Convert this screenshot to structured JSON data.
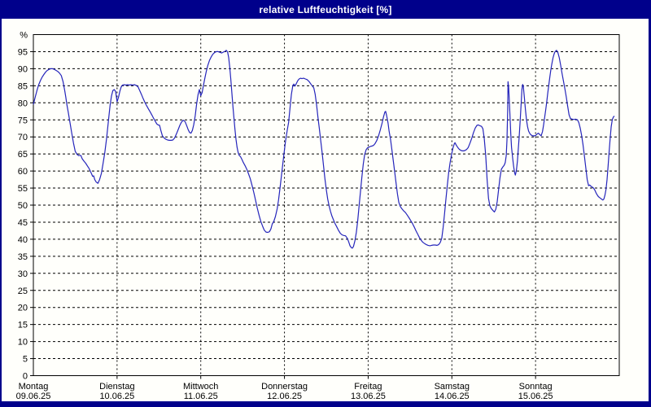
{
  "window": {
    "title": "relative Luftfeuchtigkeit [%]"
  },
  "colors": {
    "chrome": "#00008b",
    "title_text": "#ffffff",
    "background": "#fffffb",
    "line": "#2525bb",
    "grid": "#000000",
    "frame": "#000000",
    "text": "#000000"
  },
  "chart_data": {
    "type": "line",
    "title": "relative Luftfeuchtigkeit [%]",
    "y_unit": "%",
    "ylabel": "relative Luftfeuchtigkeit",
    "ylim": [
      0,
      100
    ],
    "y_ticks": [
      0,
      5,
      10,
      15,
      20,
      25,
      30,
      35,
      40,
      45,
      50,
      55,
      60,
      65,
      70,
      75,
      80,
      85,
      90,
      95
    ],
    "grid": "dashed",
    "legend": "none",
    "x_hours_total": 168,
    "x_days": [
      {
        "name": "Montag",
        "date": "09.06.25"
      },
      {
        "name": "Dienstag",
        "date": "10.06.25"
      },
      {
        "name": "Mittwoch",
        "date": "11.06.25"
      },
      {
        "name": "Donnerstag",
        "date": "12.06.25"
      },
      {
        "name": "Freitag",
        "date": "13.06.25"
      },
      {
        "name": "Samstag",
        "date": "14.06.25"
      },
      {
        "name": "Sonntag",
        "date": "15.06.25"
      }
    ],
    "points": [
      [
        0,
        79.5
      ],
      [
        0.5,
        81.5
      ],
      [
        1,
        83.5
      ],
      [
        1.5,
        85.2
      ],
      [
        2,
        86.5
      ],
      [
        2.5,
        87.5
      ],
      [
        3,
        88.3
      ],
      [
        3.5,
        89
      ],
      [
        4,
        89.5
      ],
      [
        4.5,
        89.8
      ],
      [
        5,
        90
      ],
      [
        5.5,
        90
      ],
      [
        6,
        89.8
      ],
      [
        6.5,
        89.5
      ],
      [
        7,
        89.2
      ],
      [
        7.5,
        88.7
      ],
      [
        8,
        88
      ],
      [
        8.5,
        86.3
      ],
      [
        9,
        83.5
      ],
      [
        9.3,
        81.6
      ],
      [
        9.6,
        79.6
      ],
      [
        10,
        77.2
      ],
      [
        10.5,
        74.2
      ],
      [
        11,
        71.2
      ],
      [
        11.5,
        68.2
      ],
      [
        12,
        65.8
      ],
      [
        12.5,
        64.9
      ],
      [
        13,
        64.5
      ],
      [
        13.6,
        64.6
      ],
      [
        14,
        63.6
      ],
      [
        14.5,
        62.9
      ],
      [
        15,
        62.3
      ],
      [
        15.5,
        61.5
      ],
      [
        16,
        60.7
      ],
      [
        16.5,
        59.6
      ],
      [
        17,
        58.4
      ],
      [
        17.3,
        58.6
      ],
      [
        17.6,
        57.5
      ],
      [
        18,
        56.8
      ],
      [
        18.5,
        56.4
      ],
      [
        19,
        57.5
      ],
      [
        19.5,
        59.3
      ],
      [
        20,
        62.3
      ],
      [
        20.5,
        65.6
      ],
      [
        21,
        69.6
      ],
      [
        21.5,
        74.4
      ],
      [
        22,
        79.3
      ],
      [
        22.4,
        82
      ],
      [
        22.8,
        83.6
      ],
      [
        23.2,
        83.9
      ],
      [
        23.6,
        83.3
      ],
      [
        24,
        80.3
      ],
      [
        24.4,
        81.6
      ],
      [
        24.8,
        83.4
      ],
      [
        25.2,
        84.7
      ],
      [
        25.6,
        85.2
      ],
      [
        26,
        85.3
      ],
      [
        26.5,
        85.2
      ],
      [
        27,
        85.3
      ],
      [
        27.5,
        85.2
      ],
      [
        28,
        85.3
      ],
      [
        28.5,
        85.2
      ],
      [
        29,
        85.3
      ],
      [
        29.5,
        85.1
      ],
      [
        30,
        84.7
      ],
      [
        30.5,
        83.6
      ],
      [
        31,
        82.4
      ],
      [
        31.5,
        81.2
      ],
      [
        32,
        80.1
      ],
      [
        32.5,
        79.1
      ],
      [
        33,
        78.2
      ],
      [
        33.5,
        77.3
      ],
      [
        34,
        76.4
      ],
      [
        34.5,
        75.4
      ],
      [
        35,
        74.5
      ],
      [
        35.4,
        73.8
      ],
      [
        35.8,
        73.5
      ],
      [
        36.2,
        73.4
      ],
      [
        36.6,
        71.7
      ],
      [
        37,
        70.3
      ],
      [
        37.5,
        69.7
      ],
      [
        38,
        69.3
      ],
      [
        38.5,
        69.1
      ],
      [
        39,
        69
      ],
      [
        39.5,
        69
      ],
      [
        40,
        69.1
      ],
      [
        40.5,
        69.7
      ],
      [
        41,
        70.8
      ],
      [
        41.5,
        72.1
      ],
      [
        42,
        73.4
      ],
      [
        42.5,
        74.4
      ],
      [
        43,
        74.9
      ],
      [
        43.5,
        74.5
      ],
      [
        44,
        73.2
      ],
      [
        44.4,
        72.1
      ],
      [
        44.8,
        71.3
      ],
      [
        45.2,
        71.1
      ],
      [
        45.6,
        71.9
      ],
      [
        46,
        73.6
      ],
      [
        46.4,
        76.2
      ],
      [
        46.8,
        79.6
      ],
      [
        47.2,
        82.3
      ],
      [
        47.6,
        83.9
      ],
      [
        48,
        82.1
      ],
      [
        48.4,
        83
      ],
      [
        48.8,
        85.2
      ],
      [
        49.2,
        87.4
      ],
      [
        49.6,
        89.3
      ],
      [
        50,
        90.9
      ],
      [
        50.5,
        92.4
      ],
      [
        51,
        93.5
      ],
      [
        51.5,
        94.3
      ],
      [
        52,
        94.8
      ],
      [
        52.5,
        95
      ],
      [
        53,
        95
      ],
      [
        53.5,
        94.8
      ],
      [
        54,
        94.6
      ],
      [
        54.5,
        94.9
      ],
      [
        55,
        95.1
      ],
      [
        55.3,
        95.4
      ],
      [
        55.7,
        94.9
      ],
      [
        56,
        93.3
      ],
      [
        56.3,
        90.5
      ],
      [
        56.6,
        87
      ],
      [
        56.9,
        83
      ],
      [
        57.2,
        79.3
      ],
      [
        57.5,
        75.8
      ],
      [
        57.8,
        72.3
      ],
      [
        58.1,
        69.3
      ],
      [
        58.4,
        67
      ],
      [
        58.7,
        65.5
      ],
      [
        59,
        64.6
      ],
      [
        59.4,
        64.2
      ],
      [
        59.8,
        63.4
      ],
      [
        60.2,
        62.5
      ],
      [
        60.7,
        61.6
      ],
      [
        61.2,
        60.5
      ],
      [
        61.7,
        59.2
      ],
      [
        62.2,
        57.7
      ],
      [
        62.7,
        55.8
      ],
      [
        63.2,
        53.7
      ],
      [
        63.7,
        51.5
      ],
      [
        64.2,
        49.2
      ],
      [
        64.7,
        47.1
      ],
      [
        65.2,
        45.3
      ],
      [
        65.7,
        43.9
      ],
      [
        66.2,
        42.7
      ],
      [
        66.7,
        42.1
      ],
      [
        67.2,
        42
      ],
      [
        67.7,
        42.2
      ],
      [
        68.1,
        43
      ],
      [
        68.5,
        44.5
      ],
      [
        68.9,
        45.1
      ],
      [
        69.4,
        46.6
      ],
      [
        69.9,
        48.9
      ],
      [
        70.3,
        51.5
      ],
      [
        70.8,
        55.6
      ],
      [
        71.3,
        60.2
      ],
      [
        71.8,
        64.5
      ],
      [
        72.3,
        68.8
      ],
      [
        72.8,
        72
      ],
      [
        73.2,
        74.3
      ],
      [
        73.6,
        78.5
      ],
      [
        74,
        82.5
      ],
      [
        74.4,
        85.1
      ],
      [
        74.7,
        85.5
      ],
      [
        75,
        84.9
      ],
      [
        75.4,
        85.6
      ],
      [
        75.8,
        86.5
      ],
      [
        76.2,
        87
      ],
      [
        76.6,
        87.2
      ],
      [
        77,
        87.1
      ],
      [
        77.5,
        87.2
      ],
      [
        78,
        87
      ],
      [
        78.5,
        86.8
      ],
      [
        79,
        86.3
      ],
      [
        79.5,
        85.6
      ],
      [
        80,
        84.9
      ],
      [
        80.4,
        84.4
      ],
      [
        80.8,
        82.5
      ],
      [
        81.2,
        79.5
      ],
      [
        81.6,
        75.8
      ],
      [
        82,
        72.5
      ],
      [
        82.4,
        69
      ],
      [
        82.8,
        65.3
      ],
      [
        83.2,
        61.5
      ],
      [
        83.6,
        57.7
      ],
      [
        84,
        54.5
      ],
      [
        84.4,
        51.8
      ],
      [
        84.8,
        49.8
      ],
      [
        85.2,
        48.2
      ],
      [
        85.6,
        46.8
      ],
      [
        86,
        45.8
      ],
      [
        86.5,
        44.6
      ],
      [
        87,
        43.6
      ],
      [
        87.5,
        42.6
      ],
      [
        88,
        41.8
      ],
      [
        88.5,
        41.3
      ],
      [
        89,
        41.1
      ],
      [
        89.5,
        41
      ],
      [
        90,
        40.3
      ],
      [
        90.4,
        39.3
      ],
      [
        90.8,
        38.1
      ],
      [
        91.2,
        37.5
      ],
      [
        91.5,
        37.4
      ],
      [
        91.8,
        37.9
      ],
      [
        92.2,
        39.5
      ],
      [
        92.6,
        42
      ],
      [
        93,
        45.5
      ],
      [
        93.4,
        49.8
      ],
      [
        93.8,
        54
      ],
      [
        94.2,
        58.2
      ],
      [
        94.6,
        62
      ],
      [
        95,
        64.8
      ],
      [
        95.4,
        66.2
      ],
      [
        95.8,
        66.8
      ],
      [
        96.2,
        67
      ],
      [
        96.6,
        67.2
      ],
      [
        97,
        67.3
      ],
      [
        97.5,
        67.5
      ],
      [
        98,
        68.1
      ],
      [
        98.5,
        69
      ],
      [
        99,
        70.4
      ],
      [
        99.5,
        72.1
      ],
      [
        100,
        74.1
      ],
      [
        100.4,
        75.9
      ],
      [
        100.8,
        77.3
      ],
      [
        101,
        77.5
      ],
      [
        101.3,
        76.3
      ],
      [
        101.7,
        74
      ],
      [
        102,
        71.8
      ],
      [
        102.4,
        69.3
      ],
      [
        102.8,
        66.2
      ],
      [
        103.2,
        63
      ],
      [
        103.6,
        59.8
      ],
      [
        104,
        56.5
      ],
      [
        104.4,
        53.3
      ],
      [
        104.8,
        50.8
      ],
      [
        105.2,
        49.6
      ],
      [
        105.7,
        48.9
      ],
      [
        106.2,
        48.3
      ],
      [
        106.7,
        47.8
      ],
      [
        107.2,
        47.1
      ],
      [
        107.7,
        46.3
      ],
      [
        108.2,
        45.5
      ],
      [
        108.7,
        44.6
      ],
      [
        109.2,
        43.6
      ],
      [
        109.7,
        42.5
      ],
      [
        110.2,
        41.5
      ],
      [
        110.7,
        40.5
      ],
      [
        111.2,
        39.7
      ],
      [
        111.7,
        39.1
      ],
      [
        112.2,
        38.7
      ],
      [
        112.7,
        38.4
      ],
      [
        113.2,
        38.2
      ],
      [
        113.7,
        38.1
      ],
      [
        114.2,
        38.2
      ],
      [
        114.7,
        38.3
      ],
      [
        115.2,
        38.3
      ],
      [
        115.7,
        38.2
      ],
      [
        116.2,
        38.4
      ],
      [
        116.7,
        39.1
      ],
      [
        117.1,
        40.3
      ],
      [
        117.5,
        43.5
      ],
      [
        117.9,
        47.5
      ],
      [
        118.3,
        51.8
      ],
      [
        118.7,
        55.8
      ],
      [
        119.1,
        59.6
      ],
      [
        119.5,
        62.4
      ],
      [
        119.9,
        64.8
      ],
      [
        120.3,
        66.7
      ],
      [
        120.7,
        68
      ],
      [
        120.9,
        68.3
      ],
      [
        121.3,
        67.5
      ],
      [
        121.7,
        66.9
      ],
      [
        122.2,
        66.3
      ],
      [
        122.7,
        66
      ],
      [
        123.2,
        65.9
      ],
      [
        123.7,
        66
      ],
      [
        124.2,
        66.3
      ],
      [
        124.7,
        66.9
      ],
      [
        125.2,
        68.2
      ],
      [
        125.7,
        69.6
      ],
      [
        126.2,
        71.3
      ],
      [
        126.7,
        72.6
      ],
      [
        127.2,
        73.4
      ],
      [
        127.6,
        73.5
      ],
      [
        128,
        73.3
      ],
      [
        128.5,
        73.1
      ],
      [
        128.9,
        72.4
      ],
      [
        129.3,
        69.5
      ],
      [
        129.7,
        64.5
      ],
      [
        130.1,
        57.5
      ],
      [
        130.5,
        52
      ],
      [
        130.9,
        49.8
      ],
      [
        131.3,
        49
      ],
      [
        131.8,
        48.4
      ],
      [
        132.2,
        48
      ],
      [
        132.6,
        48.8
      ],
      [
        133,
        51
      ],
      [
        133.4,
        54.5
      ],
      [
        133.8,
        58
      ],
      [
        134.2,
        60.5
      ],
      [
        134.6,
        61.2
      ],
      [
        135,
        61.7
      ],
      [
        135.3,
        62.5
      ],
      [
        135.6,
        64.5
      ],
      [
        135.8,
        69
      ],
      [
        136,
        78
      ],
      [
        136.1,
        86.2
      ],
      [
        136.3,
        84.5
      ],
      [
        136.5,
        80
      ],
      [
        136.7,
        75.2
      ],
      [
        136.9,
        70.8
      ],
      [
        137.1,
        67
      ],
      [
        137.4,
        64
      ],
      [
        137.7,
        61.5
      ],
      [
        138,
        59.5
      ],
      [
        138.2,
        58.8
      ],
      [
        138.5,
        60.2
      ],
      [
        138.8,
        63
      ],
      [
        139,
        65.8
      ],
      [
        139.3,
        70
      ],
      [
        139.6,
        75
      ],
      [
        139.9,
        80.5
      ],
      [
        140.1,
        84
      ],
      [
        140.3,
        85.4
      ],
      [
        140.5,
        84.8
      ],
      [
        140.8,
        81.5
      ],
      [
        141.1,
        78
      ],
      [
        141.4,
        75
      ],
      [
        141.7,
        73
      ],
      [
        142,
        71.7
      ],
      [
        142.4,
        70.9
      ],
      [
        142.8,
        70.5
      ],
      [
        143.2,
        70.3
      ],
      [
        143.6,
        70.3
      ],
      [
        144,
        70.4
      ],
      [
        144.4,
        70.8
      ],
      [
        144.8,
        71.1
      ],
      [
        145.2,
        70.7
      ],
      [
        145.6,
        70.3
      ],
      [
        146,
        71.6
      ],
      [
        146.3,
        73.5
      ],
      [
        146.6,
        75.7
      ],
      [
        146.9,
        77.9
      ],
      [
        147.2,
        80.3
      ],
      [
        147.5,
        82.8
      ],
      [
        147.8,
        85.2
      ],
      [
        148.1,
        87.6
      ],
      [
        148.4,
        89.8
      ],
      [
        148.7,
        91.6
      ],
      [
        149,
        93.2
      ],
      [
        149.3,
        94.3
      ],
      [
        149.6,
        95
      ],
      [
        150,
        95.4
      ],
      [
        150.4,
        94.7
      ],
      [
        150.8,
        93.2
      ],
      [
        151.2,
        91
      ],
      [
        151.6,
        88.6
      ],
      [
        152,
        86.4
      ],
      [
        152.4,
        84.2
      ],
      [
        152.8,
        81.7
      ],
      [
        153.2,
        79
      ],
      [
        153.6,
        76.5
      ],
      [
        154,
        75.4
      ],
      [
        154.5,
        75.2
      ],
      [
        155,
        75.1
      ],
      [
        155.5,
        75.2
      ],
      [
        156,
        75
      ],
      [
        156.4,
        74.2
      ],
      [
        156.8,
        72.6
      ],
      [
        157.2,
        70.5
      ],
      [
        157.6,
        67.8
      ],
      [
        158,
        64.5
      ],
      [
        158.4,
        60.9
      ],
      [
        158.8,
        57.5
      ],
      [
        159.2,
        55.7
      ],
      [
        159.5,
        55.9
      ],
      [
        159.8,
        55.6
      ],
      [
        160.2,
        55.3
      ],
      [
        160.6,
        55
      ],
      [
        161,
        54.4
      ],
      [
        161.5,
        53.3
      ],
      [
        162,
        52.5
      ],
      [
        162.5,
        52.1
      ],
      [
        163,
        51.7
      ],
      [
        163.3,
        51.5
      ],
      [
        163.6,
        51.8
      ],
      [
        163.9,
        52.9
      ],
      [
        164.2,
        54.6
      ],
      [
        164.5,
        57.5
      ],
      [
        164.8,
        61.5
      ],
      [
        165.1,
        65.8
      ],
      [
        165.4,
        69.8
      ],
      [
        165.7,
        73
      ],
      [
        166,
        75
      ],
      [
        166.3,
        75.8
      ],
      [
        166.6,
        76.1
      ]
    ]
  }
}
